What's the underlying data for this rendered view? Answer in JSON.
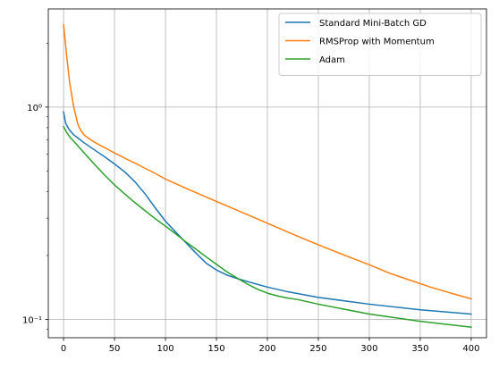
{
  "chart_data": {
    "type": "line",
    "title": "",
    "xlabel": "",
    "ylabel": "",
    "xlim": [
      -15,
      415
    ],
    "ylim": [
      0.082,
      2.9
    ],
    "y_scale": "log",
    "grid": true,
    "legend_position": "top-right",
    "x_ticks": [
      0,
      50,
      100,
      150,
      200,
      250,
      300,
      350,
      400
    ],
    "x_tick_labels": [
      "0",
      "50",
      "100",
      "150",
      "200",
      "250",
      "300",
      "350",
      "400"
    ],
    "y_ticks": [
      1.0,
      0.1
    ],
    "y_tick_labels": [
      "10⁰",
      "10⁻¹"
    ],
    "series": [
      {
        "name": "Standard Mini-Batch GD",
        "color": "#1f77b4",
        "x": [
          0,
          2,
          5,
          10,
          15,
          20,
          30,
          40,
          50,
          60,
          70,
          80,
          90,
          100,
          110,
          120,
          130,
          140,
          150,
          160,
          170,
          180,
          200,
          220,
          250,
          300,
          350,
          400
        ],
        "y": [
          0.95,
          0.84,
          0.79,
          0.74,
          0.71,
          0.68,
          0.63,
          0.585,
          0.54,
          0.495,
          0.445,
          0.39,
          0.335,
          0.29,
          0.258,
          0.23,
          0.205,
          0.184,
          0.171,
          0.162,
          0.156,
          0.151,
          0.142,
          0.135,
          0.127,
          0.118,
          0.111,
          0.106
        ]
      },
      {
        "name": "RMSProp with Momentum",
        "color": "#ff7f0e",
        "x": [
          0,
          3,
          6,
          10,
          14,
          17,
          20,
          25,
          30,
          40,
          50,
          60,
          70,
          80,
          90,
          100,
          120,
          140,
          160,
          180,
          200,
          220,
          240,
          260,
          280,
          300,
          320,
          340,
          360,
          380,
          400
        ],
        "y": [
          2.45,
          1.75,
          1.3,
          1.0,
          0.83,
          0.775,
          0.74,
          0.71,
          0.685,
          0.645,
          0.608,
          0.575,
          0.545,
          0.515,
          0.487,
          0.458,
          0.415,
          0.377,
          0.343,
          0.312,
          0.284,
          0.258,
          0.235,
          0.215,
          0.197,
          0.181,
          0.165,
          0.153,
          0.142,
          0.133,
          0.125
        ]
      },
      {
        "name": "Adam",
        "color": "#2ca02c",
        "x": [
          0,
          3,
          6,
          10,
          20,
          30,
          40,
          50,
          60,
          70,
          80,
          90,
          100,
          110,
          120,
          130,
          140,
          150,
          160,
          170,
          180,
          190,
          200,
          210,
          220,
          230,
          250,
          300,
          350,
          400
        ],
        "y": [
          0.81,
          0.76,
          0.725,
          0.69,
          0.61,
          0.54,
          0.48,
          0.43,
          0.39,
          0.355,
          0.325,
          0.298,
          0.275,
          0.253,
          0.232,
          0.214,
          0.197,
          0.182,
          0.168,
          0.157,
          0.147,
          0.139,
          0.133,
          0.129,
          0.126,
          0.124,
          0.118,
          0.106,
          0.098,
          0.092
        ]
      }
    ]
  }
}
